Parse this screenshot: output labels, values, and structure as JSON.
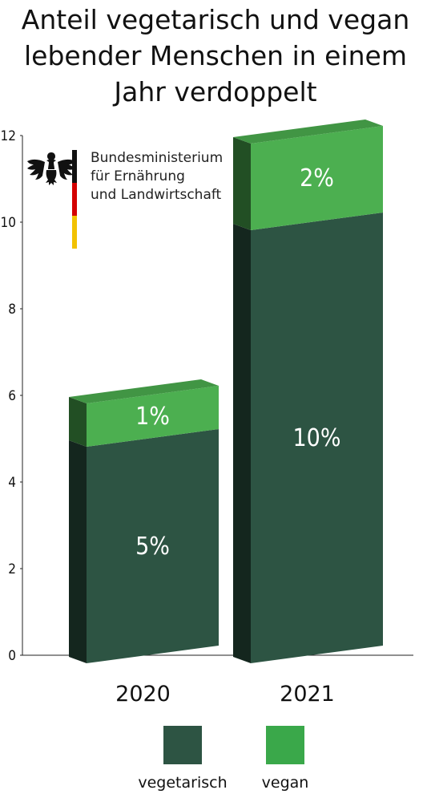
{
  "title_lines": [
    "Anteil vegetarisch und vegan",
    "lebender Menschen in einem",
    "Jahr verdoppelt"
  ],
  "logo": {
    "lines": [
      "Bundesministerium",
      "für Ernährung",
      "und Landwirtschaft"
    ],
    "emblem": "eagle-icon",
    "flag_colors": [
      "#111111",
      "#d40000",
      "#f2c200"
    ]
  },
  "chart_data": {
    "type": "bar",
    "stacked": true,
    "categories": [
      "2020",
      "2021"
    ],
    "series": [
      {
        "name": "vegetarisch",
        "values": [
          5,
          10
        ],
        "labels": [
          "5%",
          "10%"
        ],
        "color": "#2d5443"
      },
      {
        "name": "vegan",
        "values": [
          1,
          2
        ],
        "labels": [
          "1%",
          "2%"
        ],
        "color": "#4caf50"
      }
    ],
    "yticks": [
      "0",
      "2",
      "4",
      "6",
      "8",
      "10",
      "12"
    ],
    "ylim": [
      0,
      12
    ],
    "grid": false,
    "legend_position": "bottom"
  },
  "legend": [
    {
      "label": "vegetarisch",
      "color": "#2d5443"
    },
    {
      "label": "vegan",
      "color": "#3aa84a"
    }
  ]
}
